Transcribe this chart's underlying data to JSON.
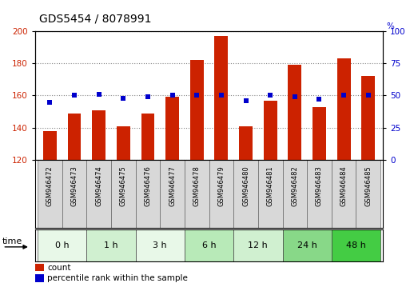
{
  "title": "GDS5454 / 8078991",
  "samples": [
    "GSM946472",
    "GSM946473",
    "GSM946474",
    "GSM946475",
    "GSM946476",
    "GSM946477",
    "GSM946478",
    "GSM946479",
    "GSM946480",
    "GSM946481",
    "GSM946482",
    "GSM946483",
    "GSM946484",
    "GSM946485"
  ],
  "counts": [
    138,
    149,
    151,
    141,
    149,
    159,
    182,
    197,
    141,
    157,
    179,
    153,
    183,
    172
  ],
  "percentile_ranks": [
    45,
    50,
    51,
    48,
    49,
    50,
    50,
    50,
    46,
    50,
    49,
    47,
    50,
    50
  ],
  "time_groups": [
    {
      "label": "0 h",
      "start": 0,
      "end": 2,
      "color": "#e8f8e8"
    },
    {
      "label": "1 h",
      "start": 2,
      "end": 4,
      "color": "#d0f0d0"
    },
    {
      "label": "3 h",
      "start": 4,
      "end": 6,
      "color": "#e8f8e8"
    },
    {
      "label": "6 h",
      "start": 6,
      "end": 8,
      "color": "#b8eab8"
    },
    {
      "label": "12 h",
      "start": 8,
      "end": 10,
      "color": "#d0f0d0"
    },
    {
      "label": "24 h",
      "start": 10,
      "end": 12,
      "color": "#88d888"
    },
    {
      "label": "48 h",
      "start": 12,
      "end": 14,
      "color": "#44cc44"
    }
  ],
  "ylim_left": [
    120,
    200
  ],
  "ylim_right": [
    0,
    100
  ],
  "yticks_left": [
    120,
    140,
    160,
    180,
    200
  ],
  "yticks_right": [
    0,
    25,
    50,
    75,
    100
  ],
  "bar_color": "#cc2200",
  "dot_color": "#0000cc",
  "background_color": "#ffffff",
  "title_fontsize": 10,
  "tick_fontsize": 7.5,
  "label_fontsize": 7.5,
  "sample_label_fontsize": 6.0,
  "time_fontsize": 8.0,
  "legend_fontsize": 7.5
}
